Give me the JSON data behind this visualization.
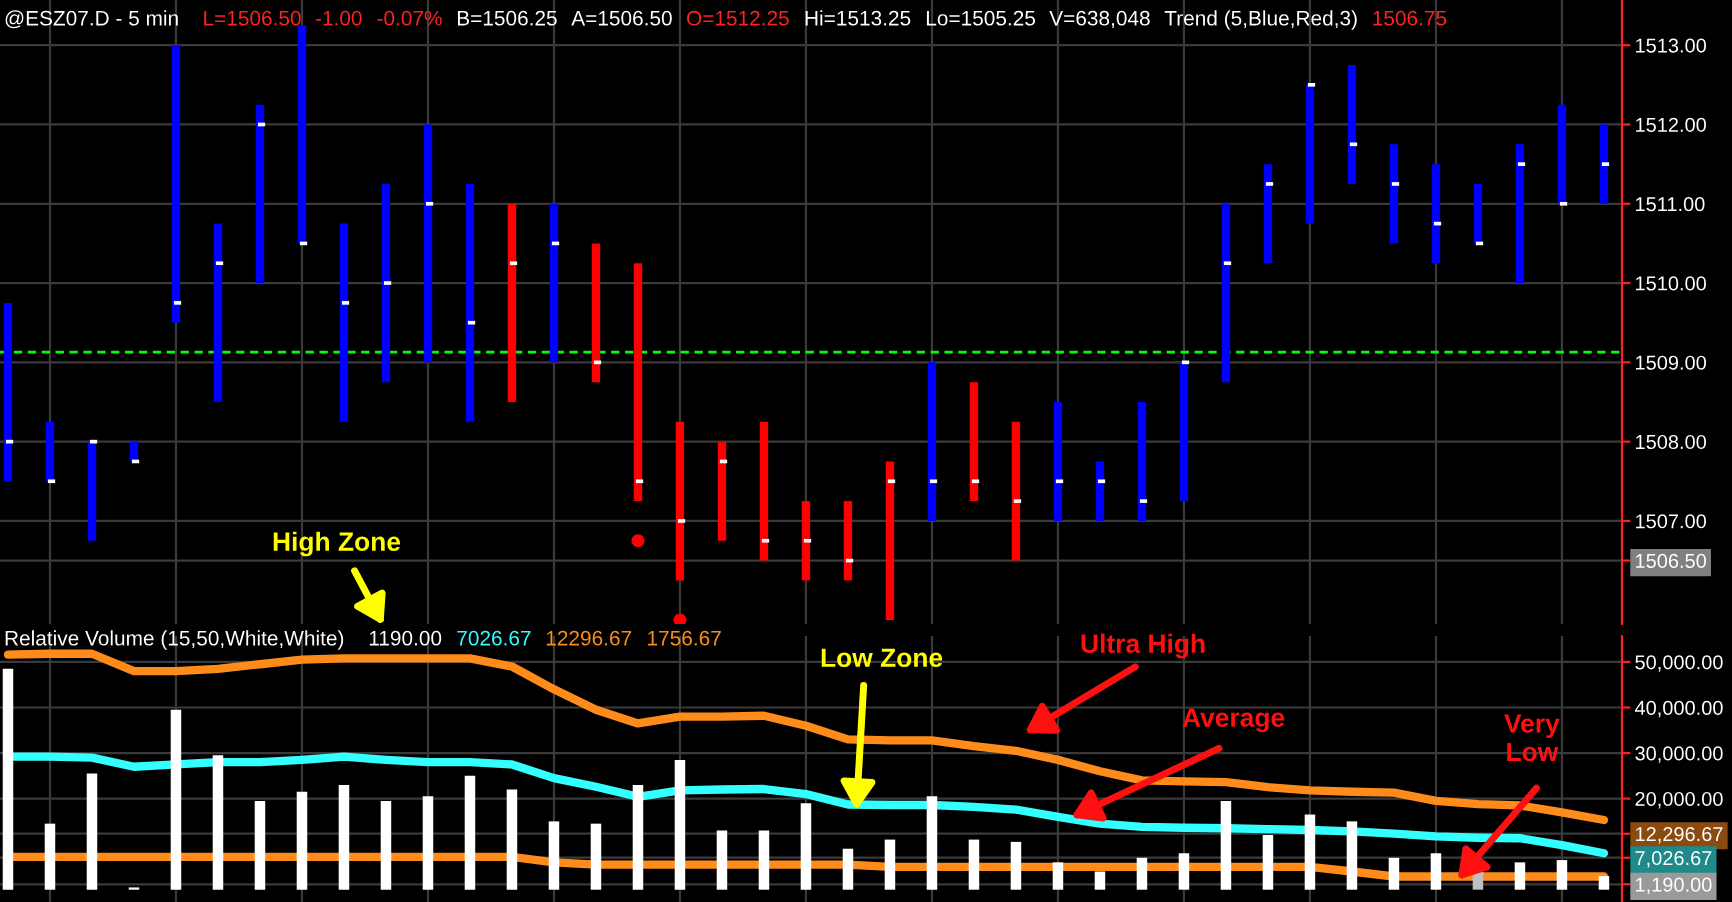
{
  "chart_data": [
    {
      "type": "bar",
      "title": "@ESZ07.D - 5 min",
      "annotations": [
        "L=1506.50",
        "-1.00",
        "-0.07%",
        "B=1506.25",
        "A=1506.50",
        "O=1512.25",
        "Hi=1513.25",
        "Lo=1505.25",
        "V=638,048",
        "Trend (5,Blue,Red,3)",
        "1506.75"
      ],
      "categories": [
        null,
        null,
        null,
        null,
        null,
        null,
        null,
        null,
        null,
        null,
        null,
        null,
        null,
        null,
        null,
        null,
        null,
        null,
        null,
        null,
        null,
        null,
        null,
        null,
        null,
        null,
        null,
        null,
        null,
        null,
        null,
        null,
        null,
        null,
        null,
        null,
        null,
        null,
        null
      ],
      "series": [
        {
          "type": "bar",
          "base": [
            1507.5,
            1507.5,
            1506.75,
            1507.75,
            1509.5,
            1508.5,
            1510.0,
            1510.5,
            1508.25,
            1508.75,
            1509.0,
            1508.25,
            1508.5,
            1509.0,
            1508.75,
            1507.25,
            1506.25,
            1506.75,
            1506.5,
            1506.25,
            1506.25,
            1505.75,
            1507.0,
            1507.25,
            1506.5,
            1507.0,
            1507.0,
            1507.0,
            1507.25,
            1508.75,
            1510.25,
            1510.75,
            1511.25,
            1510.5,
            1510.25,
            1510.5,
            1510.0,
            1511.0,
            1511.0
          ],
          "values": [
            2.25,
            0.75,
            1.25,
            0.25,
            3.5,
            2.25,
            2.25,
            2.75,
            2.5,
            2.5,
            3.0,
            3.0,
            2.5,
            2.0,
            1.75,
            3.0,
            2.0,
            1.25,
            1.75,
            1.0,
            1.0,
            2.0,
            2.0,
            1.5,
            1.75,
            1.5,
            0.75,
            1.5,
            1.75,
            2.25,
            1.25,
            1.75,
            1.5,
            1.25,
            1.25,
            0.75,
            1.75,
            1.25,
            1.0
          ],
          "colors": [
            "#0000ff",
            "#0000ff",
            "#0000ff",
            "#0000ff",
            "#0000ff",
            "#0000ff",
            "#0000ff",
            "#0000ff",
            "#0000ff",
            "#0000ff",
            "#0000ff",
            "#0000ff",
            "#ff0000",
            "#0000ff",
            "#ff0000",
            "#ff0000",
            "#ff0000",
            "#ff0000",
            "#ff0000",
            "#ff0000",
            "#ff0000",
            "#ff0000",
            "#0000ff",
            "#ff0000",
            "#ff0000",
            "#0000ff",
            "#0000ff",
            "#0000ff",
            "#0000ff",
            "#0000ff",
            "#0000ff",
            "#0000ff",
            "#0000ff",
            "#0000ff",
            "#0000ff",
            "#0000ff",
            "#0000ff",
            "#0000ff",
            "#0000ff"
          ]
        },
        {
          "type": "scatter",
          "color": "#ffffff",
          "values": [
            1508.0,
            1507.5,
            1508.0,
            1507.75,
            1509.75,
            1510.25,
            1512.0,
            1510.5,
            1509.75,
            1510.0,
            1511.0,
            1509.5,
            1510.25,
            1510.5,
            1509.0,
            1507.5,
            1507.0,
            1507.75,
            1506.75,
            1506.75,
            1506.5,
            1507.5,
            1507.5,
            1507.5,
            1507.25,
            1507.5,
            1507.5,
            1507.25,
            1509.0,
            1510.25,
            1511.25,
            1512.5,
            1511.75,
            1511.25,
            1510.75,
            1510.5,
            1511.5,
            1511.0,
            1511.5
          ]
        },
        {
          "type": "scatter",
          "color": "#ff0000",
          "marker": "circle",
          "values": [
            null,
            null,
            null,
            null,
            null,
            null,
            null,
            null,
            null,
            null,
            null,
            null,
            null,
            null,
            null,
            1506.75,
            1505.75,
            null,
            null,
            null,
            null,
            null,
            null,
            null,
            null,
            null,
            null,
            null,
            null,
            null,
            null,
            null,
            null,
            null,
            null,
            null,
            null,
            null,
            null
          ]
        }
      ],
      "ylim": [
        1505.7,
        1513.57
      ],
      "yticks": [
        {
          "value": 1513,
          "label": "1513.00"
        },
        {
          "value": 1512,
          "label": "1512.00"
        },
        {
          "value": 1511,
          "label": "1511.00"
        },
        {
          "value": 1510,
          "label": "1510.00"
        },
        {
          "value": 1509,
          "label": "1509.00"
        },
        {
          "value": 1508,
          "label": "1508.00"
        },
        {
          "value": 1507,
          "label": "1507.00"
        },
        {
          "value": 1506.5,
          "label": "1506.50"
        }
      ],
      "ref_lines": [
        {
          "axis": "y",
          "value": 1509.13,
          "color": "#00ff00",
          "line_style": "dashed"
        }
      ],
      "grid": true
    },
    {
      "type": "bar",
      "title": "Relative Volume (15,50,White,White)",
      "annotations": [
        "1190.00",
        "7026.67",
        "12296.67",
        "1756.67",
        "High Zone",
        "Low Zone",
        "Ultra High",
        "Average",
        "Very\nLow"
      ],
      "categories": [
        null,
        null,
        null,
        null,
        null,
        null,
        null,
        null,
        null,
        null,
        null,
        null,
        null,
        null,
        null,
        null,
        null,
        null,
        null,
        null,
        null,
        null,
        null,
        null,
        null,
        null,
        null,
        null,
        null,
        null,
        null,
        null,
        null,
        null,
        null,
        null,
        null,
        null,
        null
      ],
      "series": [
        {
          "type": "bar",
          "values": [
            48500,
            14500,
            25500,
            500,
            39500,
            29500,
            19500,
            21500,
            23000,
            19500,
            20500,
            25000,
            22000,
            15000,
            14500,
            23000,
            28500,
            13000,
            13000,
            19000,
            9000,
            11000,
            20500,
            11000,
            10500,
            6000,
            4000,
            7000,
            8000,
            19500,
            12000,
            16500,
            15000,
            7000,
            8000,
            4000,
            6000,
            6500,
            3000
          ],
          "colors": [
            "#ffffff",
            "#ffffff",
            "#ffffff",
            "#ffffff",
            "#ffffff",
            "#ffffff",
            "#ffffff",
            "#ffffff",
            "#ffffff",
            "#ffffff",
            "#ffffff",
            "#ffffff",
            "#ffffff",
            "#ffffff",
            "#ffffff",
            "#ffffff",
            "#ffffff",
            "#ffffff",
            "#ffffff",
            "#ffffff",
            "#ffffff",
            "#ffffff",
            "#ffffff",
            "#ffffff",
            "#ffffff",
            "#ffffff",
            "#ffffff",
            "#ffffff",
            "#ffffff",
            "#ffffff",
            "#ffffff",
            "#ffffff",
            "#ffffff",
            "#ffffff",
            "#ffffff",
            "#c0c0c0",
            "#ffffff",
            "#ffffff",
            "#ffffff"
          ]
        },
        {
          "type": "line",
          "color": "#ff8c1a",
          "values": [
            51600,
            51800,
            51800,
            48000,
            48000,
            48500,
            49500,
            50500,
            50800,
            50800,
            50800,
            50800,
            49000,
            44000,
            39500,
            36500,
            38000,
            38000,
            38200,
            36000,
            33000,
            32800,
            32800,
            31500,
            30500,
            28500,
            26000,
            24000,
            23800,
            23600,
            22500,
            21800,
            21500,
            21300,
            19500,
            18800,
            18500,
            17000,
            15300
          ]
        },
        {
          "type": "line",
          "color": "#33ffff",
          "values": [
            29200,
            29200,
            29000,
            27000,
            27500,
            28000,
            28000,
            28500,
            29200,
            28500,
            28000,
            28000,
            27500,
            24500,
            22600,
            20400,
            21800,
            22000,
            22100,
            21000,
            18700,
            18600,
            18600,
            18200,
            17600,
            16000,
            14500,
            13800,
            13600,
            13500,
            13300,
            13100,
            12800,
            12300,
            11700,
            11400,
            11300,
            9800,
            8000
          ]
        },
        {
          "type": "line",
          "color": "#ff8c1a",
          "values": [
            7200,
            7200,
            7200,
            7200,
            7200,
            7200,
            7200,
            7200,
            7200,
            7200,
            7200,
            7200,
            7200,
            6000,
            5500,
            5500,
            5500,
            5500,
            5500,
            5500,
            5500,
            5000,
            5000,
            5000,
            5000,
            5000,
            5000,
            5000,
            5000,
            5000,
            5000,
            5000,
            4000,
            2900,
            2900,
            2900,
            2900,
            2900,
            2900
          ]
        }
      ],
      "ylim": [
        -2700,
        55700
      ],
      "yticks": [
        {
          "value": 50000,
          "label": "50,000.00"
        },
        {
          "value": 40000,
          "label": "40,000.00"
        },
        {
          "value": 30000,
          "label": "30,000.00"
        },
        {
          "value": 20000,
          "label": "20,000.00"
        },
        {
          "value": 12296.67,
          "label": "12,296.67"
        },
        {
          "value": 7026.67,
          "label": "7,026.67"
        },
        {
          "value": 1190,
          "label": "1,190.00"
        }
      ],
      "grid": true
    }
  ]
}
